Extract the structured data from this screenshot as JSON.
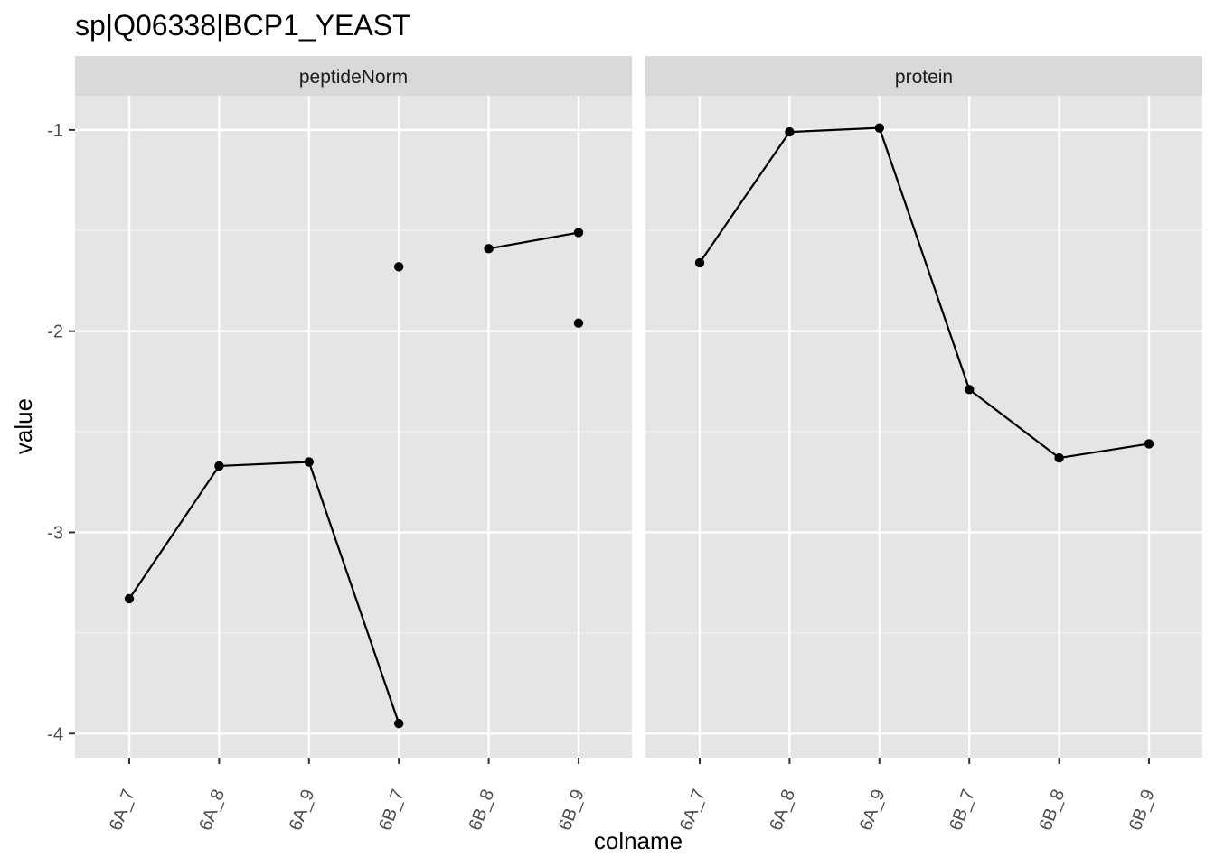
{
  "chart_data": {
    "type": "line",
    "title": "sp|Q06338|BCP1_YEAST",
    "xlabel": "colname",
    "ylabel": "value",
    "categories": [
      "6A_7",
      "6A_8",
      "6A_9",
      "6B_7",
      "6B_8",
      "6B_9"
    ],
    "ylim": [
      -4.12,
      -0.83
    ],
    "yticks": [
      -4,
      -3,
      -2,
      -1
    ],
    "ytick_labels": [
      "-4",
      "-3",
      "-2",
      "-1"
    ],
    "grid": true,
    "panels": [
      {
        "name": "peptideNorm",
        "series": [
          {
            "values": [
              -3.33,
              -2.67,
              -2.65,
              -3.95,
              null,
              null
            ]
          },
          {
            "values": [
              null,
              null,
              null,
              -1.68,
              null,
              null
            ]
          },
          {
            "values": [
              null,
              null,
              null,
              null,
              -1.59,
              -1.51
            ]
          },
          {
            "values": [
              null,
              null,
              null,
              null,
              null,
              -1.96
            ]
          }
        ]
      },
      {
        "name": "protein",
        "series": [
          {
            "values": [
              -1.66,
              -1.01,
              -0.99,
              -2.29,
              -2.63,
              -2.56
            ]
          }
        ]
      }
    ],
    "colors": {
      "panel_background": "#e5e5e5",
      "strip_background": "#d9d9d9",
      "grid_major": "#ffffff",
      "grid_minor": "#f2f2f2",
      "line": "#000000",
      "point": "#000000"
    }
  }
}
